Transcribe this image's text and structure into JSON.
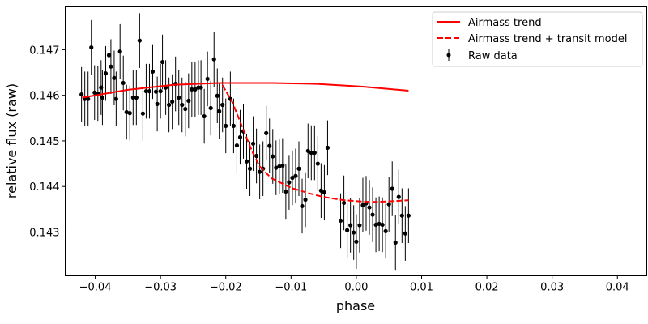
{
  "chart_data": {
    "type": "scatter",
    "xlabel": "phase",
    "ylabel": "relative flux (raw)",
    "xlim": [
      -0.0446,
      0.0445
    ],
    "ylim": [
      0.14204,
      0.14794
    ],
    "xticks": [
      -0.04,
      -0.03,
      -0.02,
      -0.01,
      0.0,
      0.01,
      0.02,
      0.03,
      0.04
    ],
    "xtick_labels": [
      "−0.04",
      "−0.03",
      "−0.02",
      "−0.01",
      "0.00",
      "0.01",
      "0.02",
      "0.03",
      "0.04"
    ],
    "yticks": [
      0.143,
      0.144,
      0.145,
      0.146,
      0.147
    ],
    "ytick_labels": [
      "0.143",
      "0.144",
      "0.145",
      "0.146",
      "0.147"
    ],
    "grid": false,
    "legend_position": "top-right",
    "legend": [
      "Airmass trend",
      "Airmass trend + transit model",
      "Raw data"
    ],
    "colors": {
      "trend": "#ff0000",
      "data": "#000000"
    },
    "raw_data": {
      "yerr": 0.0006,
      "x": [
        -0.0421,
        -0.0416,
        -0.0411,
        -0.0406,
        -0.0401,
        -0.0396,
        -0.0391,
        -0.0389,
        -0.0384,
        -0.0379,
        -0.0376,
        -0.0371,
        -0.0368,
        -0.0362,
        -0.0357,
        -0.0352,
        -0.0347,
        -0.0342,
        -0.0337,
        -0.0332,
        -0.0327,
        -0.0322,
        -0.0317,
        -0.0312,
        -0.0307,
        -0.0305,
        -0.03,
        -0.0297,
        -0.0292,
        -0.0287,
        -0.0282,
        -0.0277,
        -0.0272,
        -0.0267,
        -0.0262,
        -0.0257,
        -0.0252,
        -0.0247,
        -0.0242,
        -0.0238,
        -0.0233,
        -0.0228,
        -0.0223,
        -0.0218,
        -0.0213,
        -0.021,
        -0.0205,
        -0.02,
        -0.0193,
        -0.0188,
        -0.0183,
        -0.0178,
        -0.0173,
        -0.0168,
        -0.0163,
        -0.0158,
        -0.0153,
        -0.0148,
        -0.0143,
        -0.0138,
        -0.0133,
        -0.0128,
        -0.0123,
        -0.0118,
        -0.0113,
        -0.0108,
        -0.0103,
        -0.0098,
        -0.0093,
        -0.0088,
        -0.0083,
        -0.0078,
        -0.0074,
        -0.0069,
        -0.0064,
        -0.0059,
        -0.0054,
        -0.0049,
        -0.0044,
        -0.0024,
        -0.0019,
        -0.0014,
        -0.0009,
        -0.0004,
        0.0,
        0.0005,
        0.001,
        0.0015,
        0.002,
        0.0025,
        0.003,
        0.0035,
        0.004,
        0.0045,
        0.005,
        0.0055,
        0.006,
        0.0065,
        0.007,
        0.0075,
        0.008
      ],
      "y": [
        0.14602,
        0.14592,
        0.14592,
        0.14705,
        0.14606,
        0.14604,
        0.14617,
        0.14595,
        0.14648,
        0.14688,
        0.14663,
        0.14638,
        0.14592,
        0.14696,
        0.14627,
        0.14563,
        0.14561,
        0.14595,
        0.14595,
        0.1472,
        0.1456,
        0.14609,
        0.14609,
        0.14652,
        0.14608,
        0.14581,
        0.14609,
        0.14673,
        0.14617,
        0.14579,
        0.14586,
        0.14625,
        0.14595,
        0.14579,
        0.1457,
        0.14588,
        0.14613,
        0.14613,
        0.14617,
        0.14617,
        0.14554,
        0.14636,
        0.14572,
        0.14679,
        0.14599,
        0.14565,
        0.14579,
        0.14533,
        0.14592,
        0.14533,
        0.1449,
        0.14508,
        0.14521,
        0.14455,
        0.14439,
        0.14494,
        0.14467,
        0.14432,
        0.14439,
        0.14517,
        0.14489,
        0.14466,
        0.14441,
        0.14444,
        0.14446,
        0.14389,
        0.14409,
        0.14419,
        0.14423,
        0.14439,
        0.14357,
        0.14371,
        0.14478,
        0.14474,
        0.14474,
        0.1445,
        0.14391,
        0.14387,
        0.14485,
        0.14325,
        0.14364,
        0.14304,
        0.14315,
        0.14299,
        0.14279,
        0.14315,
        0.14359,
        0.14363,
        0.14354,
        0.14338,
        0.14316,
        0.14318,
        0.14316,
        0.14302,
        0.14361,
        0.14395,
        0.14277,
        0.14377,
        0.14336,
        0.14297,
        0.14336
      ]
    },
    "airmass_trend": {
      "x": [
        -0.042,
        -0.035,
        -0.028,
        -0.021,
        -0.013,
        -0.006,
        0.001,
        0.008
      ],
      "y": [
        0.14595,
        0.14612,
        0.14623,
        0.14627,
        0.14627,
        0.14625,
        0.14619,
        0.1461
      ]
    },
    "transit_model": {
      "x": [
        -0.0205,
        -0.019,
        -0.0173,
        -0.016,
        -0.0148,
        -0.013,
        -0.0098,
        -0.007,
        -0.005,
        -0.002,
        0.001,
        0.003,
        0.006,
        0.008
      ],
      "y": [
        0.14622,
        0.14585,
        0.14524,
        0.14478,
        0.14444,
        0.14418,
        0.14396,
        0.14384,
        0.14377,
        0.1437,
        0.14367,
        0.14366,
        0.14368,
        0.1437
      ]
    }
  }
}
